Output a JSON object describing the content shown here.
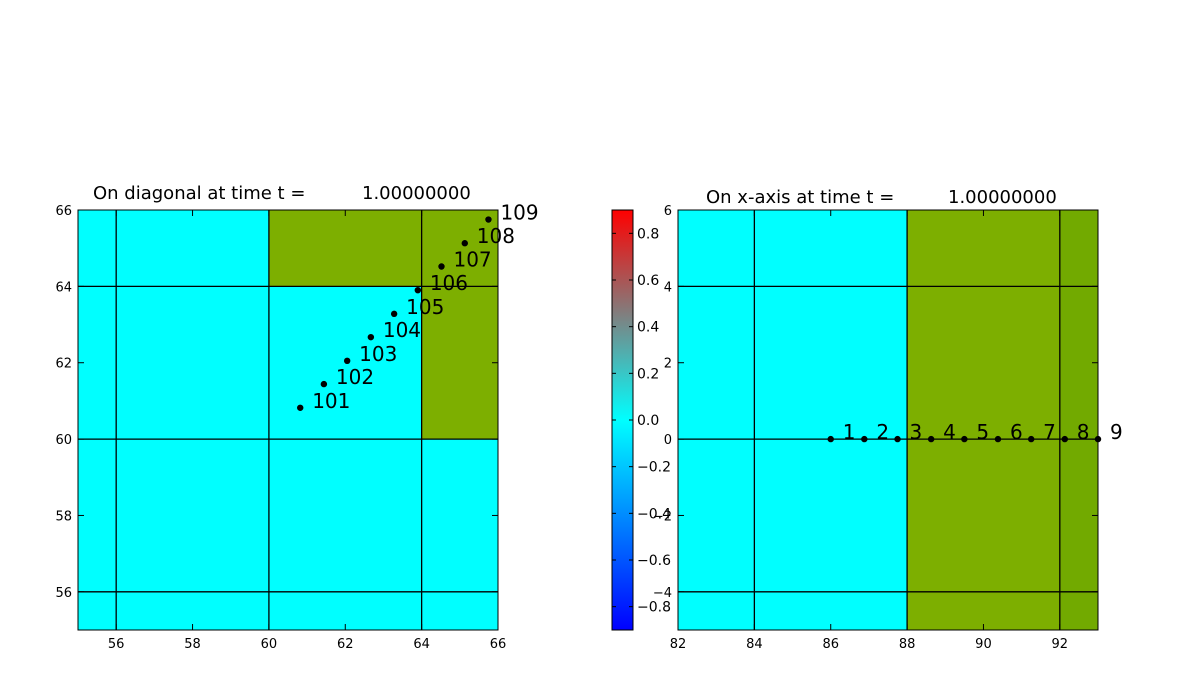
{
  "chart_data": [
    {
      "type": "scatter",
      "title": "On diagonal at time t =",
      "time_value": "1.00000000",
      "xlim": [
        55,
        66
      ],
      "ylim": [
        55,
        66
      ],
      "xticks": [
        "56",
        "58",
        "60",
        "62",
        "64",
        "66"
      ],
      "yticks": [
        "56",
        "58",
        "60",
        "62",
        "64",
        "66"
      ],
      "background_cells": [
        {
          "x0": 55,
          "x1": 60,
          "y0": 55,
          "y1": 66,
          "color": "#00ffff"
        },
        {
          "x0": 60,
          "x1": 64,
          "y0": 55,
          "y1": 64,
          "color": "#00ffff"
        },
        {
          "x0": 64,
          "x1": 66,
          "y0": 55,
          "y1": 60,
          "color": "#00ffff"
        },
        {
          "x0": 60,
          "x1": 64,
          "y0": 64,
          "y1": 66,
          "color": "#7daf00"
        },
        {
          "x0": 64,
          "x1": 66,
          "y0": 60,
          "y1": 66,
          "color": "#7daf00"
        }
      ],
      "grid_lines": {
        "x": [
          56,
          60,
          64
        ],
        "y": [
          56,
          60,
          64
        ]
      },
      "points": [
        {
          "label": "101",
          "x": 60.82,
          "y": 60.82
        },
        {
          "label": "102",
          "x": 61.44,
          "y": 61.44
        },
        {
          "label": "103",
          "x": 62.05,
          "y": 62.05
        },
        {
          "label": "104",
          "x": 62.67,
          "y": 62.67
        },
        {
          "label": "105",
          "x": 63.28,
          "y": 63.28
        },
        {
          "label": "106",
          "x": 63.9,
          "y": 63.9
        },
        {
          "label": "107",
          "x": 64.52,
          "y": 64.52
        },
        {
          "label": "108",
          "x": 65.13,
          "y": 65.13
        },
        {
          "label": "109",
          "x": 65.75,
          "y": 65.75
        }
      ]
    },
    {
      "type": "scatter",
      "title": "On x-axis at time t =",
      "time_value": "1.00000000",
      "xlim": [
        82,
        93
      ],
      "ylim": [
        -5,
        6
      ],
      "xticks": [
        "82",
        "84",
        "86",
        "88",
        "90",
        "92"
      ],
      "yticks": [
        "−4",
        "−2",
        "0",
        "2",
        "4",
        "6"
      ],
      "background_cells": [
        {
          "x0": 82,
          "x1": 88,
          "y0": -5,
          "y1": 6,
          "color": "#00ffff"
        },
        {
          "x0": 88,
          "x1": 92,
          "y0": -5,
          "y1": 6,
          "color": "#7daf00"
        },
        {
          "x0": 92,
          "x1": 93,
          "y0": -5,
          "y1": 6,
          "color": "#72aa00"
        }
      ],
      "grid_lines": {
        "x": [
          84,
          88,
          92
        ],
        "y": [
          -4,
          0,
          4
        ]
      },
      "points": [
        {
          "label": "1",
          "x": 86.0,
          "y": 0
        },
        {
          "label": "2",
          "x": 86.88,
          "y": 0
        },
        {
          "label": "3",
          "x": 87.75,
          "y": 0
        },
        {
          "label": "4",
          "x": 88.63,
          "y": 0
        },
        {
          "label": "5",
          "x": 89.5,
          "y": 0
        },
        {
          "label": "6",
          "x": 90.38,
          "y": 0
        },
        {
          "label": "7",
          "x": 91.25,
          "y": 0
        },
        {
          "label": "8",
          "x": 92.13,
          "y": 0
        },
        {
          "label": "9",
          "x": 93.0,
          "y": 0
        }
      ]
    },
    {
      "type": "colorbar",
      "range": [
        -0.9,
        0.9
      ],
      "ticks": [
        "0.8",
        "0.6",
        "0.4",
        "0.2",
        "0.0",
        "−0.2",
        "−0.4",
        "−0.6",
        "−0.8"
      ],
      "colors": {
        "top": "#ff0000",
        "mid": "#00ffff",
        "bottom": "#0000ff"
      }
    }
  ]
}
